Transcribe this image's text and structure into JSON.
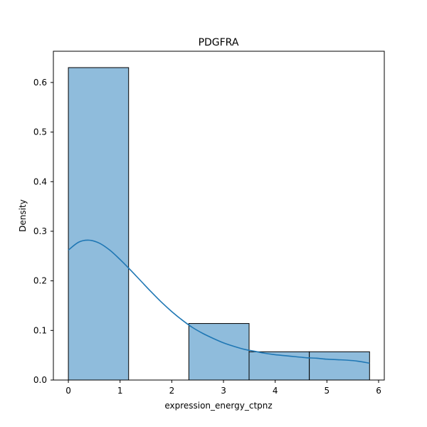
{
  "chart_data": {
    "type": "bar",
    "title": "PDGFRA",
    "xlabel": "expression_energy_ctpnz",
    "ylabel": "Density",
    "xlim": [
      -0.29,
      6.11
    ],
    "ylim": [
      0,
      0.663
    ],
    "xticks": [
      0,
      1,
      2,
      3,
      4,
      5,
      6
    ],
    "yticks": [
      0.0,
      0.1,
      0.2,
      0.3,
      0.4,
      0.5,
      0.6
    ],
    "ytick_labels": [
      "0.0",
      "0.1",
      "0.2",
      "0.3",
      "0.4",
      "0.5",
      "0.6"
    ],
    "grid": false,
    "bins": [
      {
        "x0": 0.0,
        "x1": 1.165,
        "density": 0.63
      },
      {
        "x0": 1.165,
        "x1": 2.33,
        "density": 0.0
      },
      {
        "x0": 2.33,
        "x1": 3.495,
        "density": 0.114
      },
      {
        "x0": 3.495,
        "x1": 4.66,
        "density": 0.057
      },
      {
        "x0": 4.66,
        "x1": 5.825,
        "density": 0.057
      }
    ],
    "kde": {
      "x": [
        0.0,
        0.2,
        0.4,
        0.6,
        0.8,
        1.0,
        1.2,
        1.4,
        1.6,
        1.8,
        2.0,
        2.2,
        2.4,
        2.6,
        2.8,
        3.0,
        3.2,
        3.4,
        3.6,
        3.8,
        4.0,
        4.2,
        4.4,
        4.6,
        4.8,
        5.0,
        5.2,
        5.4,
        5.6,
        5.825
      ],
      "y": [
        0.262,
        0.278,
        0.282,
        0.276,
        0.262,
        0.243,
        0.222,
        0.2,
        0.178,
        0.157,
        0.138,
        0.121,
        0.106,
        0.094,
        0.084,
        0.075,
        0.068,
        0.062,
        0.058,
        0.054,
        0.051,
        0.049,
        0.047,
        0.045,
        0.044,
        0.042,
        0.041,
        0.04,
        0.038,
        0.034
      ]
    },
    "colors": {
      "bar_fill": "#8fbcdc",
      "bar_edge": "#000000",
      "kde_line": "#1f77b4"
    }
  }
}
